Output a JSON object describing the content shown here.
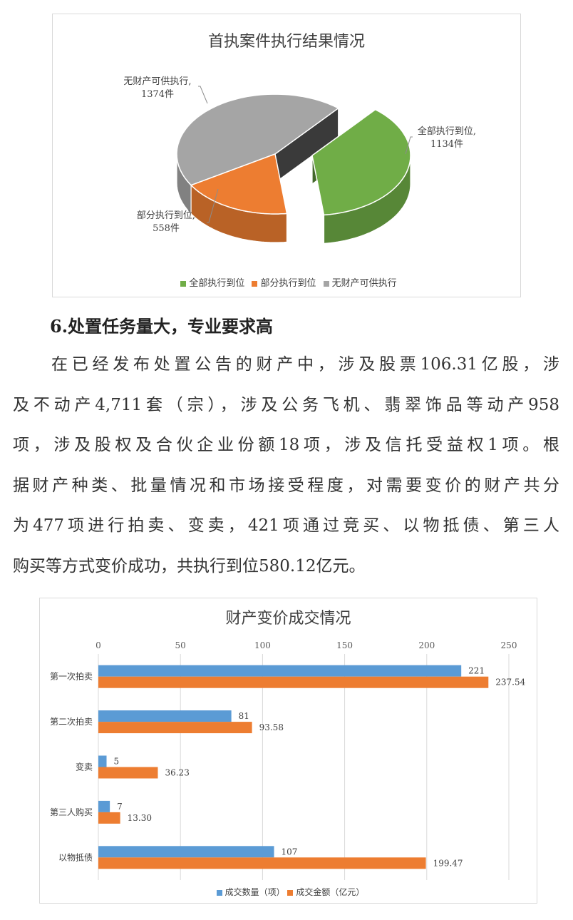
{
  "heading": "6.处置任务量大，专业要求高",
  "paragraph_lines": [
    "在已经发布处置公告的财产中，涉及股票106.31亿股，涉",
    "及不动产4,711套（宗），涉及公务飞机、翡翠饰品等动产958",
    "项，涉及股权及合伙企业份额18项，涉及信托受益权1项。根",
    "据财产种类、批量情况和市场接受程度，对需要变价的财产共分",
    "为477项进行拍卖、变卖，421项通过竞买、以物抵债、第三人",
    "购买等方式变价成功，共执行到位580.12亿元。"
  ],
  "chart_data": [
    {
      "type": "pie",
      "title": "首执案件执行结果情况",
      "three_d": true,
      "legend_position": "bottom",
      "slices": [
        {
          "name": "全部执行到位",
          "value": 1134,
          "label": "全部执行到位,",
          "value_label": "1134件",
          "color": "#70ad47",
          "exploded": true
        },
        {
          "name": "部分执行到位",
          "value": 558,
          "label": "部分执行到位,",
          "value_label": "558件",
          "color": "#ed7d31"
        },
        {
          "name": "无财产可供执行",
          "value": 1374,
          "label": "无财产可供执行,",
          "value_label": "1374件",
          "color": "#a5a5a5"
        }
      ]
    },
    {
      "type": "bar",
      "orientation": "horizontal",
      "title": "财产变价成交情况",
      "categories": [
        "第一次拍卖",
        "第二次拍卖",
        "变卖",
        "第三人购买",
        "以物抵债"
      ],
      "xlim": [
        0,
        250
      ],
      "xticks": [
        "0",
        "50",
        "100",
        "150",
        "200",
        "250"
      ],
      "grid": true,
      "axis_position": "top",
      "legend_position": "bottom",
      "series": [
        {
          "name": "成交数量（项）",
          "color": "#5b9bd5",
          "values": [
            221,
            81,
            5,
            7,
            107
          ],
          "labels": [
            "221",
            "81",
            "5",
            "7",
            "107"
          ]
        },
        {
          "name": "成交金额（亿元）",
          "color": "#ed7d31",
          "values": [
            237.54,
            93.58,
            36.23,
            13.3,
            199.47
          ],
          "labels": [
            "237.54",
            "93.58",
            "36.23",
            "13.30",
            "199.47"
          ]
        }
      ]
    }
  ]
}
